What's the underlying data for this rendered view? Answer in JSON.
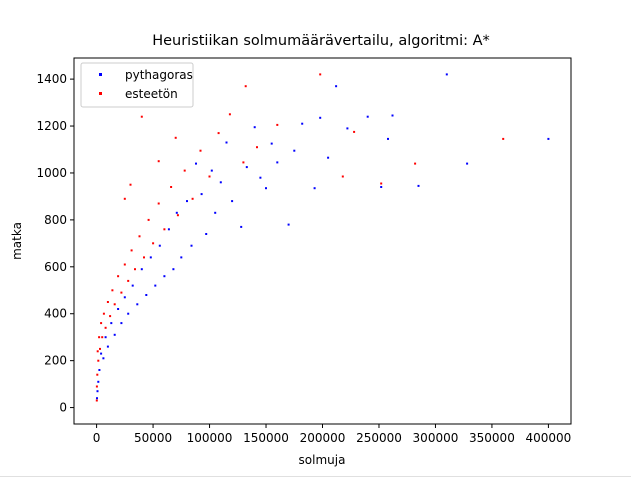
{
  "chart_data": {
    "type": "scatter",
    "title": "Heuristiikan solmumäärävertailu, algoritmi: A*",
    "xlabel": "solmuja",
    "ylabel": "matka",
    "xlim": [
      -20000,
      420000
    ],
    "ylim": [
      -70,
      1490
    ],
    "x_ticks": [
      0,
      50000,
      100000,
      150000,
      200000,
      250000,
      300000,
      350000,
      400000
    ],
    "x_tick_labels": [
      "0",
      "50000",
      "100000",
      "150000",
      "200000",
      "250000",
      "300000",
      "350000",
      "400000"
    ],
    "y_ticks": [
      0,
      200,
      400,
      600,
      800,
      1000,
      1200,
      1400
    ],
    "y_tick_labels": [
      "0",
      "200",
      "400",
      "600",
      "800",
      "1000",
      "1200",
      "1400"
    ],
    "legend_position": "upper-left",
    "grid": false,
    "series": [
      {
        "name": "pythagoras",
        "color": "#0000ff",
        "points": [
          [
            310000,
            1420
          ],
          [
            400000,
            1145
          ],
          [
            328000,
            1040
          ],
          [
            262000,
            1245
          ],
          [
            258000,
            1145
          ],
          [
            285000,
            945
          ],
          [
            252000,
            940
          ],
          [
            240000,
            1240
          ],
          [
            222000,
            1190
          ],
          [
            212000,
            1370
          ],
          [
            205000,
            1065
          ],
          [
            198000,
            1235
          ],
          [
            193000,
            935
          ],
          [
            182000,
            1210
          ],
          [
            175000,
            1095
          ],
          [
            170000,
            780
          ],
          [
            160000,
            1045
          ],
          [
            155000,
            1125
          ],
          [
            150000,
            935
          ],
          [
            145000,
            980
          ],
          [
            140000,
            1195
          ],
          [
            133000,
            1025
          ],
          [
            128000,
            770
          ],
          [
            120000,
            880
          ],
          [
            115000,
            1130
          ],
          [
            110000,
            960
          ],
          [
            105000,
            830
          ],
          [
            102000,
            1010
          ],
          [
            97000,
            740
          ],
          [
            93000,
            910
          ],
          [
            88000,
            1040
          ],
          [
            84000,
            690
          ],
          [
            80000,
            880
          ],
          [
            75000,
            640
          ],
          [
            71000,
            830
          ],
          [
            68000,
            590
          ],
          [
            64000,
            760
          ],
          [
            60000,
            560
          ],
          [
            56000,
            690
          ],
          [
            52000,
            520
          ],
          [
            48000,
            640
          ],
          [
            44000,
            480
          ],
          [
            40000,
            590
          ],
          [
            36000,
            440
          ],
          [
            32000,
            520
          ],
          [
            28000,
            400
          ],
          [
            25000,
            470
          ],
          [
            22000,
            360
          ],
          [
            19000,
            420
          ],
          [
            16000,
            310
          ],
          [
            13000,
            360
          ],
          [
            10000,
            260
          ],
          [
            8000,
            300
          ],
          [
            6000,
            210
          ],
          [
            4000,
            230
          ],
          [
            2500,
            160
          ],
          [
            1500,
            110
          ],
          [
            800,
            70
          ],
          [
            400,
            40
          ]
        ]
      },
      {
        "name": "esteetön",
        "color": "#ff0000",
        "points": [
          [
            198000,
            1420
          ],
          [
            132000,
            1370
          ],
          [
            360000,
            1145
          ],
          [
            282000,
            1040
          ],
          [
            228000,
            1175
          ],
          [
            252000,
            955
          ],
          [
            218000,
            985
          ],
          [
            160000,
            1205
          ],
          [
            142000,
            1110
          ],
          [
            130000,
            1045
          ],
          [
            118000,
            1250
          ],
          [
            108000,
            1170
          ],
          [
            100000,
            985
          ],
          [
            92000,
            1095
          ],
          [
            85000,
            890
          ],
          [
            78000,
            1010
          ],
          [
            72000,
            820
          ],
          [
            66000,
            940
          ],
          [
            60000,
            760
          ],
          [
            55000,
            870
          ],
          [
            50000,
            700
          ],
          [
            46000,
            800
          ],
          [
            42000,
            640
          ],
          [
            38000,
            730
          ],
          [
            34000,
            590
          ],
          [
            31000,
            670
          ],
          [
            28000,
            540
          ],
          [
            25000,
            610
          ],
          [
            22000,
            490
          ],
          [
            19000,
            560
          ],
          [
            16000,
            440
          ],
          [
            14000,
            500
          ],
          [
            12000,
            390
          ],
          [
            10000,
            450
          ],
          [
            8000,
            340
          ],
          [
            6500,
            400
          ],
          [
            5000,
            300
          ],
          [
            4000,
            360
          ],
          [
            3000,
            250
          ],
          [
            2200,
            300
          ],
          [
            1500,
            200
          ],
          [
            1000,
            240
          ],
          [
            600,
            140
          ],
          [
            300,
            90
          ],
          [
            150,
            30
          ],
          [
            40000,
            1240
          ],
          [
            55000,
            1050
          ],
          [
            70000,
            1150
          ],
          [
            30000,
            950
          ],
          [
            25000,
            890
          ]
        ]
      }
    ]
  }
}
